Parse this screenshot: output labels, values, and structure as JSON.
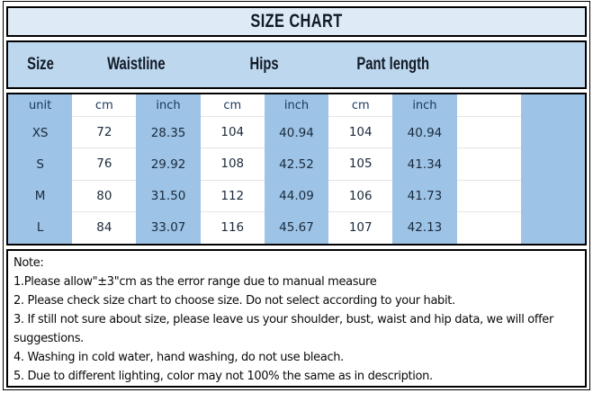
{
  "title": "SIZE CHART",
  "header": {
    "size": "Size",
    "waistline": "Waistline",
    "hips": "Hips",
    "pant_length": "Pant length"
  },
  "table": {
    "unit_row": [
      "unit",
      "cm",
      "inch",
      "cm",
      "inch",
      "cm",
      "inch"
    ],
    "rows": [
      {
        "size": "XS",
        "values": [
          "72",
          "28.35",
          "104",
          "40.94",
          "104",
          "40.94"
        ]
      },
      {
        "size": "S",
        "values": [
          "76",
          "29.92",
          "108",
          "42.52",
          "105",
          "41.34"
        ]
      },
      {
        "size": "M",
        "values": [
          "80",
          "31.50",
          "112",
          "44.09",
          "106",
          "41.73"
        ]
      },
      {
        "size": "L",
        "values": [
          "84",
          "33.07",
          "116",
          "45.67",
          "107",
          "42.13"
        ]
      }
    ]
  },
  "notes": {
    "label": "Note:",
    "items": [
      "1.Please allow\"±3\"cm as the error range due to manual measure",
      "2. Please check size chart to choose size. Do not select according to your habit.",
      "3. If still not sure about size, please leave us your shoulder, bust, waist and hip data, we will offer suggestions.",
      "4. Washing in cold water, hand washing, do not use bleach.",
      "5. Due to different lighting, color may not 100% the same as in description."
    ]
  },
  "colors": {
    "title_bg": "#DEEBF7",
    "header_bg": "#BDD7EE",
    "column_blue": "#9DC3E6",
    "border": "#000000",
    "unit_text": "#17365D",
    "data_text": "#1B2A3B"
  }
}
